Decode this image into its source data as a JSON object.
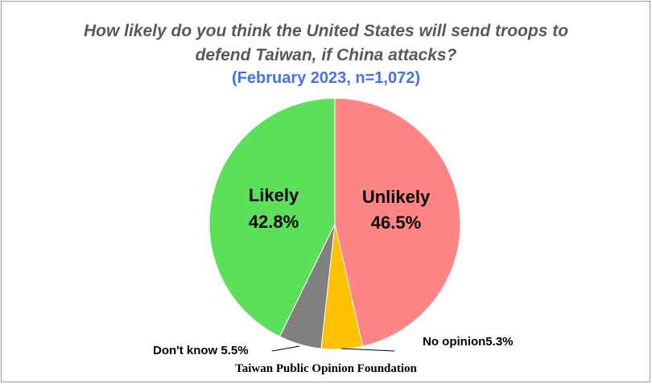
{
  "title_line1": "How likely do you think the United States will send troops to",
  "title_line2": "defend Taiwan, if China attacks?",
  "subtitle": "(February 2023, n=1,072)",
  "source": "Taiwan Public Opinion Foundation",
  "colors": {
    "unlikely": "#ff8585",
    "likely": "#5ce05a",
    "dont_know": "#808080",
    "no_opinion": "#ffc000",
    "title": "#595959",
    "subtitle": "#4472e8"
  },
  "chart_data": {
    "type": "pie",
    "title": "How likely do you think the United States will send troops to defend Taiwan, if China attacks?",
    "subtitle": "(February 2023, n=1,072)",
    "slices": [
      {
        "label": "Unlikely",
        "value": 46.5,
        "display": "46.5%",
        "color": "#ff8585"
      },
      {
        "label": "Likely",
        "value": 42.8,
        "display": "42.8%",
        "color": "#5ce05a"
      },
      {
        "label": "Don't know",
        "value": 5.5,
        "display": "5.5%",
        "color": "#808080"
      },
      {
        "label": "No opinion",
        "value": 5.3,
        "display": "5.3%",
        "color": "#ffc000"
      }
    ],
    "callout_labels": {
      "dont_know": "Don't know 5.5%",
      "no_opinion": "No opinion5.3%"
    },
    "legend": "none"
  }
}
